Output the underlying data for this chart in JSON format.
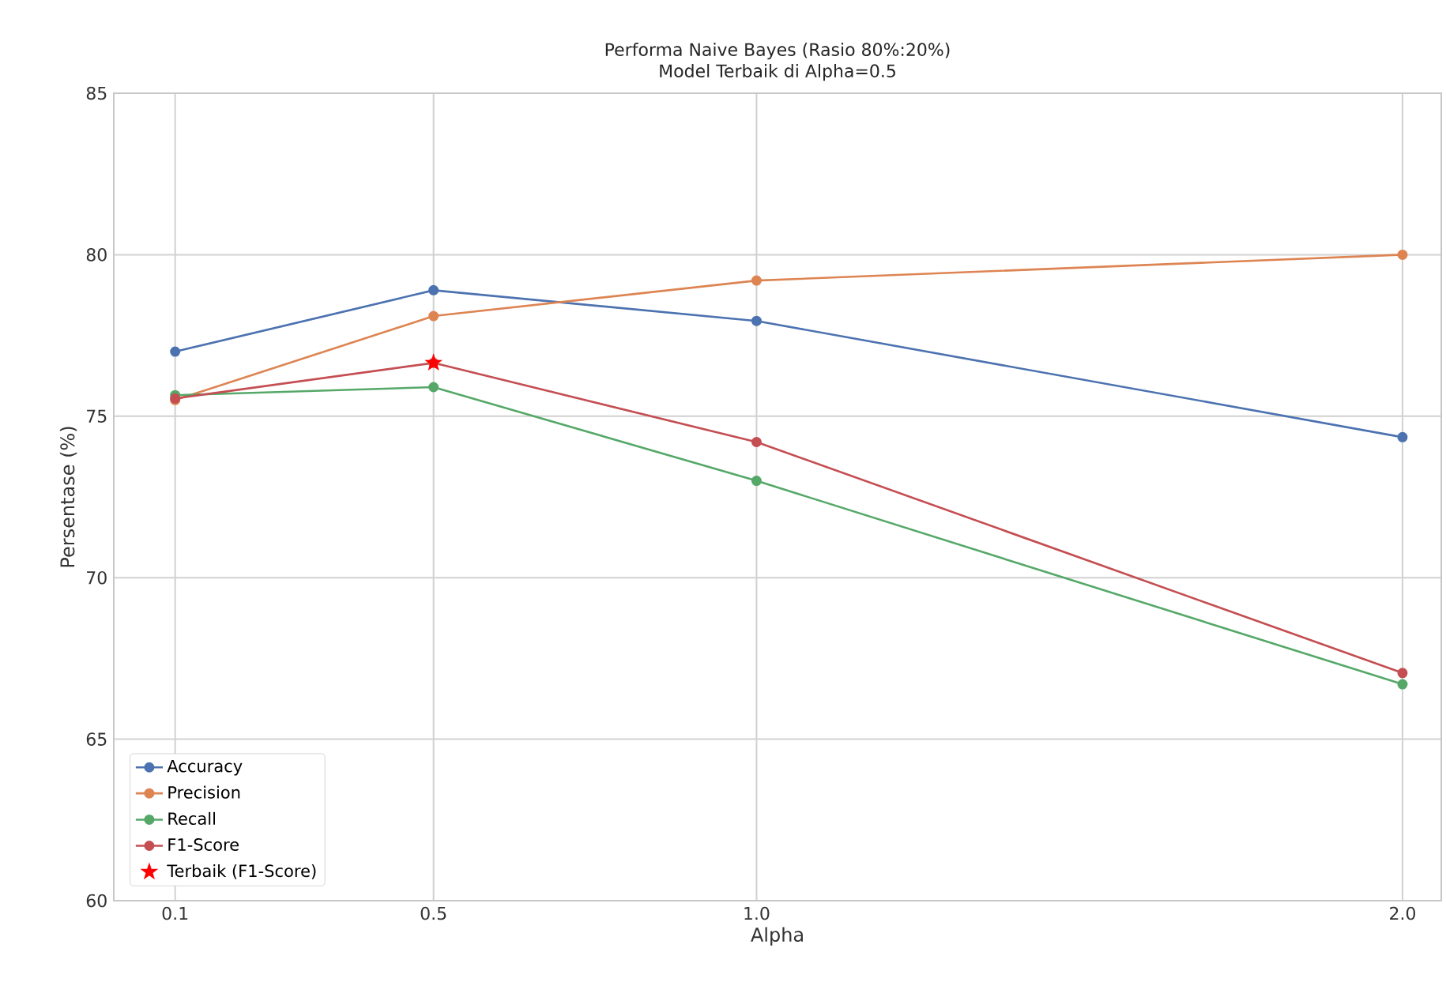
{
  "chart_data": {
    "type": "line",
    "title": "Performa Naive Bayes (Rasio 80%:20%)",
    "subtitle": "Model Terbaik di Alpha=0.5",
    "xlabel": "Alpha",
    "ylabel": "Persentase (%)",
    "x": [
      0.1,
      0.5,
      1.0,
      2.0
    ],
    "series": [
      {
        "name": "Accuracy",
        "color": "#4c72b0",
        "values": [
          77.0,
          78.9,
          77.95,
          74.35
        ]
      },
      {
        "name": "Precision",
        "color": "#dd8452",
        "values": [
          75.5,
          78.1,
          79.2,
          80.0
        ]
      },
      {
        "name": "Recall",
        "color": "#55a868",
        "values": [
          75.65,
          75.9,
          73.0,
          66.7
        ]
      },
      {
        "name": "F1-Score",
        "color": "#c44e52",
        "values": [
          75.55,
          76.65,
          74.2,
          67.05
        ]
      },
      {
        "name": "Terbaik (F1-Score)",
        "type": "scatter",
        "marker": "star",
        "color": "#ff0000",
        "x": [
          0.5
        ],
        "values": [
          76.65
        ]
      }
    ],
    "xlim": [
      0.005,
      2.06
    ],
    "ylim": [
      60,
      85
    ],
    "xticks": [
      {
        "value": 0.1,
        "label": "0.1"
      },
      {
        "value": 0.5,
        "label": "0.5"
      },
      {
        "value": 1.0,
        "label": "1.0"
      },
      {
        "value": 2.0,
        "label": "2.0"
      }
    ],
    "yticks": [
      60,
      65,
      70,
      75,
      80,
      85
    ],
    "grid": true,
    "legend": "bottom left",
    "marker": "circle",
    "line_style": "solid"
  }
}
